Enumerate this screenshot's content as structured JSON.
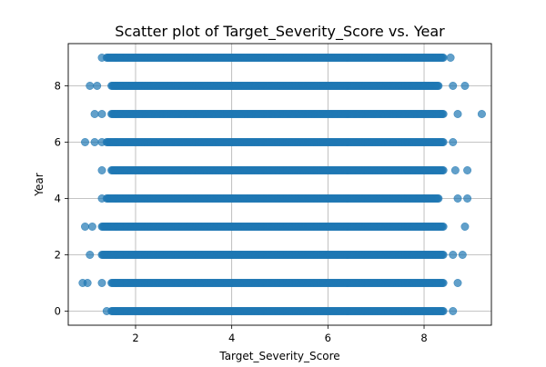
{
  "chart_data": {
    "type": "scatter",
    "title": "Scatter plot of Target_Severity_Score vs. Year",
    "xlabel": "Target_Severity_Score",
    "ylabel": "Year",
    "xlim": [
      0.6,
      9.4
    ],
    "ylim": [
      -0.5,
      9.5
    ],
    "x_ticks": [
      2,
      4,
      6,
      8
    ],
    "y_ticks": [
      0,
      2,
      4,
      6,
      8
    ],
    "grid": true,
    "marker_color": "#1f77b4",
    "marker_alpha": 0.7,
    "series": [
      {
        "bands": [
          {
            "y": 0,
            "dense_range": [
              1.5,
              8.4
            ],
            "outliers": [
              1.4,
              8.6
            ]
          },
          {
            "y": 1,
            "dense_range": [
              1.5,
              8.4
            ],
            "outliers": [
              0.9,
              1.0,
              1.3,
              8.7
            ]
          },
          {
            "y": 2,
            "dense_range": [
              1.3,
              8.4
            ],
            "outliers": [
              1.05,
              8.6,
              8.8
            ]
          },
          {
            "y": 3,
            "dense_range": [
              1.3,
              8.4
            ],
            "outliers": [
              0.95,
              1.1,
              8.85
            ]
          },
          {
            "y": 4,
            "dense_range": [
              1.4,
              8.3
            ],
            "outliers": [
              1.3,
              8.7,
              8.9
            ]
          },
          {
            "y": 5,
            "dense_range": [
              1.5,
              8.4
            ],
            "outliers": [
              1.3,
              8.65,
              8.9
            ]
          },
          {
            "y": 6,
            "dense_range": [
              1.4,
              8.4
            ],
            "outliers": [
              0.95,
              1.15,
              1.3,
              8.6
            ]
          },
          {
            "y": 7,
            "dense_range": [
              1.5,
              8.4
            ],
            "outliers": [
              1.15,
              1.3,
              8.7,
              9.2
            ]
          },
          {
            "y": 8,
            "dense_range": [
              1.5,
              8.3
            ],
            "outliers": [
              1.05,
              1.2,
              8.6,
              8.85
            ]
          },
          {
            "y": 9,
            "dense_range": [
              1.4,
              8.4
            ],
            "outliers": [
              1.3,
              8.55
            ]
          }
        ]
      }
    ]
  }
}
